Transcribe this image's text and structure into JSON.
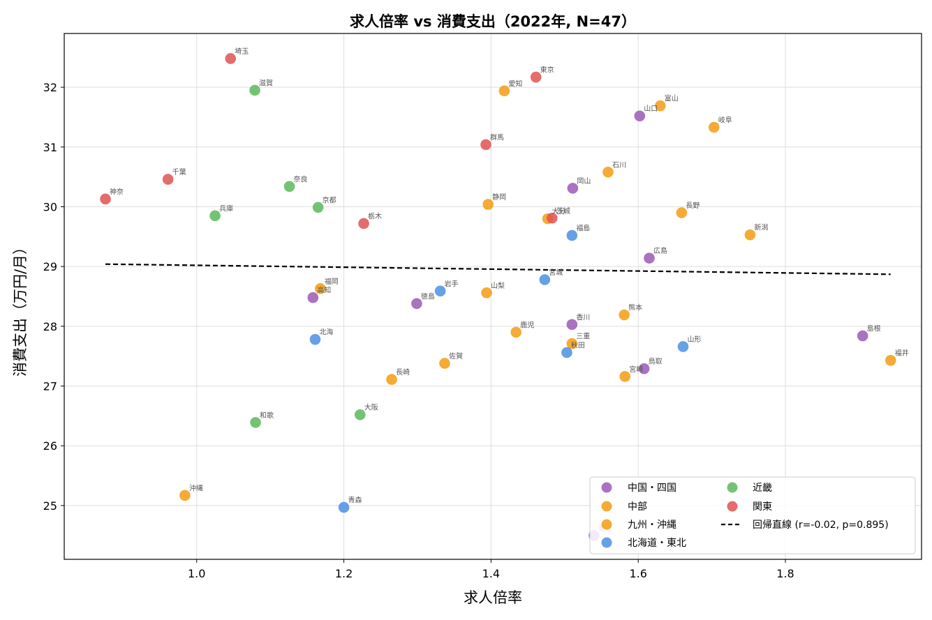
{
  "chart_data": {
    "type": "scatter",
    "title": "求人倍率 vs 消費支出（2022年, N=47）",
    "xlabel": "求人倍率",
    "ylabel": "消費支出（万円/月）",
    "xlim": [
      0.82,
      1.985
    ],
    "ylim": [
      24.1,
      32.9
    ],
    "xticks": [
      1.0,
      1.2,
      1.4,
      1.6,
      1.8
    ],
    "xtick_labels": [
      "1.0",
      "1.2",
      "1.4",
      "1.6",
      "1.8"
    ],
    "yticks": [
      25,
      26,
      27,
      28,
      29,
      30,
      31,
      32
    ],
    "ytick_labels": [
      "25",
      "26",
      "27",
      "28",
      "29",
      "30",
      "31",
      "32"
    ],
    "grid": true,
    "legend_position": "lower-right",
    "series": [
      {
        "name": "中国・四国",
        "color": "#9b59b6",
        "points": [
          {
            "label": "山口",
            "x": 1.602,
            "y": 31.52
          },
          {
            "label": "岡山",
            "x": 1.511,
            "y": 30.31
          },
          {
            "label": "広島",
            "x": 1.615,
            "y": 29.14
          },
          {
            "label": "高知",
            "x": 1.158,
            "y": 28.48
          },
          {
            "label": "徳島",
            "x": 1.299,
            "y": 28.38
          },
          {
            "label": "香川",
            "x": 1.51,
            "y": 28.03
          },
          {
            "label": "島根",
            "x": 1.905,
            "y": 27.84
          },
          {
            "label": "鳥取",
            "x": 1.608,
            "y": 27.29
          },
          {
            "label": "愛媛",
            "x": 1.54,
            "y": 24.5
          }
        ]
      },
      {
        "name": "中部",
        "color": "#f39c12",
        "points": [
          {
            "label": "愛知",
            "x": 1.418,
            "y": 31.94
          },
          {
            "label": "富山",
            "x": 1.63,
            "y": 31.69
          },
          {
            "label": "岐阜",
            "x": 1.703,
            "y": 31.33
          },
          {
            "label": "石川",
            "x": 1.559,
            "y": 30.58
          },
          {
            "label": "静岡",
            "x": 1.396,
            "y": 30.04
          },
          {
            "label": "長野",
            "x": 1.659,
            "y": 29.9
          },
          {
            "label": "新潟",
            "x": 1.752,
            "y": 29.53
          },
          {
            "label": "山梨",
            "x": 1.394,
            "y": 28.56
          },
          {
            "label": "三重",
            "x": 1.51,
            "y": 27.71
          },
          {
            "label": "福井",
            "x": 1.943,
            "y": 27.43
          }
        ]
      },
      {
        "name": "九州・沖縄",
        "color": "#f39c12",
        "points": [
          {
            "label": "大分",
            "x": 1.477,
            "y": 29.8
          },
          {
            "label": "福岡",
            "x": 1.168,
            "y": 28.63
          },
          {
            "label": "熊本",
            "x": 1.581,
            "y": 28.19
          },
          {
            "label": "鹿児",
            "x": 1.434,
            "y": 27.9
          },
          {
            "label": "佐賀",
            "x": 1.337,
            "y": 27.38
          },
          {
            "label": "宮崎",
            "x": 1.582,
            "y": 27.16
          },
          {
            "label": "長崎",
            "x": 1.265,
            "y": 27.11
          },
          {
            "label": "沖縄",
            "x": 0.984,
            "y": 25.17
          }
        ]
      },
      {
        "name": "北海道・東北",
        "color": "#4a90e2",
        "points": [
          {
            "label": "福島",
            "x": 1.51,
            "y": 29.52
          },
          {
            "label": "宮城",
            "x": 1.473,
            "y": 28.78
          },
          {
            "label": "岩手",
            "x": 1.331,
            "y": 28.59
          },
          {
            "label": "北海",
            "x": 1.161,
            "y": 27.78
          },
          {
            "label": "山形",
            "x": 1.661,
            "y": 27.66
          },
          {
            "label": "秋田",
            "x": 1.503,
            "y": 27.56
          },
          {
            "label": "青森",
            "x": 1.2,
            "y": 24.97
          }
        ]
      },
      {
        "name": "近畿",
        "color": "#5cb85c",
        "points": [
          {
            "label": "滋賀",
            "x": 1.079,
            "y": 31.95
          },
          {
            "label": "奈良",
            "x": 1.126,
            "y": 30.34
          },
          {
            "label": "京都",
            "x": 1.165,
            "y": 29.99
          },
          {
            "label": "兵庫",
            "x": 1.025,
            "y": 29.85
          },
          {
            "label": "大阪",
            "x": 1.222,
            "y": 26.52
          },
          {
            "label": "和歌",
            "x": 1.08,
            "y": 26.39
          }
        ]
      },
      {
        "name": "関東",
        "color": "#e05252",
        "points": [
          {
            "label": "埼玉",
            "x": 1.046,
            "y": 32.48
          },
          {
            "label": "東京",
            "x": 1.461,
            "y": 32.17
          },
          {
            "label": "群馬",
            "x": 1.393,
            "y": 31.04
          },
          {
            "label": "千葉",
            "x": 0.961,
            "y": 30.46
          },
          {
            "label": "神奈",
            "x": 0.876,
            "y": 30.13
          },
          {
            "label": "茨城",
            "x": 1.483,
            "y": 29.81
          },
          {
            "label": "栃木",
            "x": 1.227,
            "y": 29.72
          }
        ]
      }
    ],
    "regression": {
      "name": "回帰直線 (r=-0.02, p=0.895)",
      "x": [
        0.876,
        1.943
      ],
      "y": [
        29.04,
        28.87
      ],
      "color": "#000000"
    }
  }
}
